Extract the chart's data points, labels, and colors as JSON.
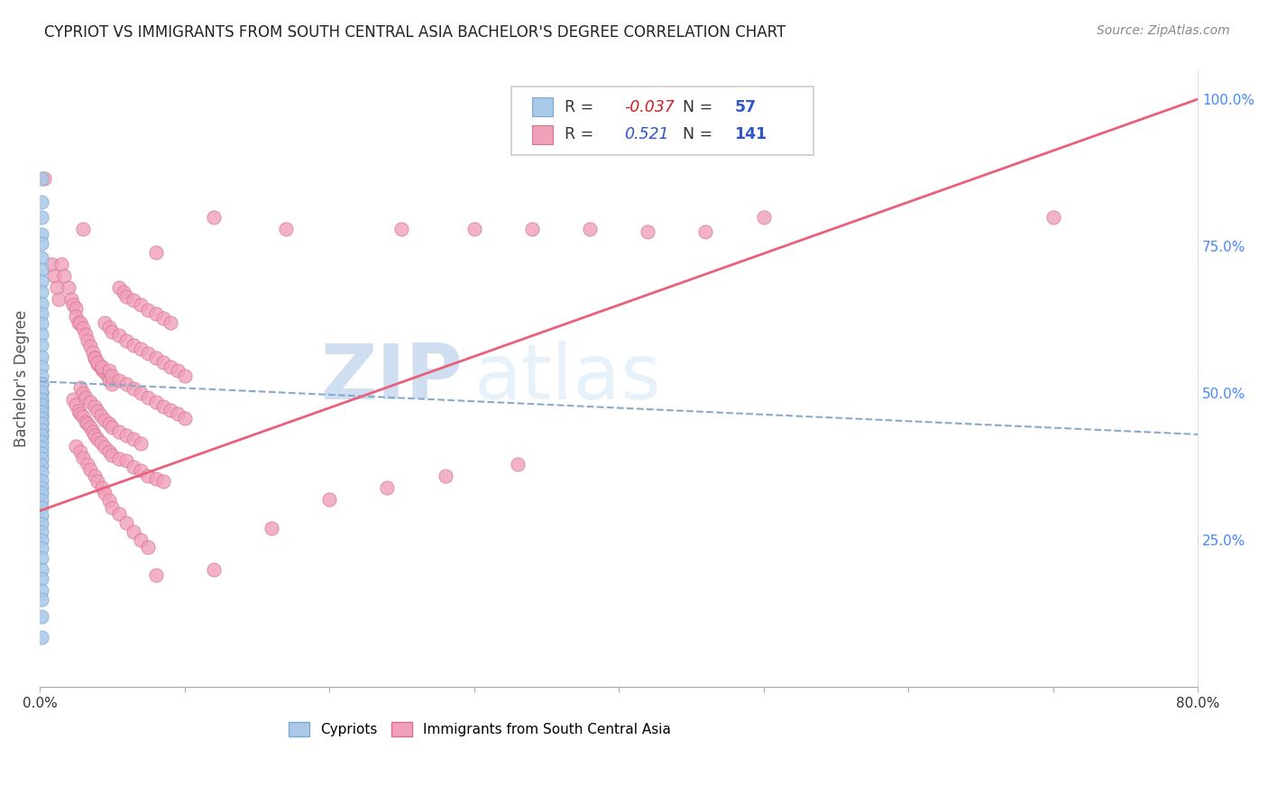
{
  "title": "CYPRIOT VS IMMIGRANTS FROM SOUTH CENTRAL ASIA BACHELOR'S DEGREE CORRELATION CHART",
  "source": "Source: ZipAtlas.com",
  "ylabel": "Bachelor's Degree",
  "xlim": [
    0.0,
    0.8
  ],
  "ylim": [
    0.0,
    1.05
  ],
  "x_tick_labels": [
    "0.0%",
    "",
    "",
    "",
    "",
    "",
    "",
    "",
    "80.0%"
  ],
  "x_tick_vals": [
    0.0,
    0.1,
    0.2,
    0.3,
    0.4,
    0.5,
    0.6,
    0.7,
    0.8
  ],
  "y_tick_labels_right": [
    "100.0%",
    "75.0%",
    "50.0%",
    "25.0%"
  ],
  "y_tick_vals_right": [
    1.0,
    0.75,
    0.5,
    0.25
  ],
  "background_color": "#ffffff",
  "grid_color": "#c8c8c8",
  "cypriot_color": "#aac8e8",
  "cypriot_edge_color": "#7aaad0",
  "immigrant_color": "#f0a0b8",
  "immigrant_edge_color": "#d87090",
  "cypriot_line_color": "#88aacc",
  "immigrant_line_color": "#e8607a",
  "R_cypriot": -0.037,
  "N_cypriot": 57,
  "R_immigrant": 0.521,
  "N_immigrant": 141,
  "watermark_ZIP": "ZIP",
  "watermark_atlas": "atlas",
  "legend_labels": [
    "Cypriots",
    "Immigrants from South Central Asia"
  ],
  "cypriot_points": [
    [
      0.001,
      0.865
    ],
    [
      0.001,
      0.825
    ],
    [
      0.001,
      0.8
    ],
    [
      0.001,
      0.77
    ],
    [
      0.001,
      0.755
    ],
    [
      0.001,
      0.73
    ],
    [
      0.001,
      0.71
    ],
    [
      0.001,
      0.69
    ],
    [
      0.001,
      0.672
    ],
    [
      0.001,
      0.652
    ],
    [
      0.001,
      0.635
    ],
    [
      0.001,
      0.618
    ],
    [
      0.001,
      0.6
    ],
    [
      0.001,
      0.582
    ],
    [
      0.001,
      0.562
    ],
    [
      0.001,
      0.545
    ],
    [
      0.001,
      0.53
    ],
    [
      0.001,
      0.515
    ],
    [
      0.001,
      0.5
    ],
    [
      0.001,
      0.488
    ],
    [
      0.001,
      0.475
    ],
    [
      0.001,
      0.462
    ],
    [
      0.001,
      0.45
    ],
    [
      0.001,
      0.438
    ],
    [
      0.001,
      0.428
    ],
    [
      0.001,
      0.515
    ],
    [
      0.001,
      0.502
    ],
    [
      0.001,
      0.49
    ],
    [
      0.001,
      0.48
    ],
    [
      0.001,
      0.468
    ],
    [
      0.001,
      0.458
    ],
    [
      0.001,
      0.448
    ],
    [
      0.001,
      0.438
    ],
    [
      0.001,
      0.428
    ],
    [
      0.001,
      0.418
    ],
    [
      0.001,
      0.408
    ],
    [
      0.001,
      0.398
    ],
    [
      0.001,
      0.388
    ],
    [
      0.001,
      0.378
    ],
    [
      0.001,
      0.365
    ],
    [
      0.001,
      0.352
    ],
    [
      0.001,
      0.34
    ],
    [
      0.001,
      0.33
    ],
    [
      0.001,
      0.318
    ],
    [
      0.001,
      0.305
    ],
    [
      0.001,
      0.292
    ],
    [
      0.001,
      0.278
    ],
    [
      0.001,
      0.265
    ],
    [
      0.001,
      0.25
    ],
    [
      0.001,
      0.237
    ],
    [
      0.001,
      0.22
    ],
    [
      0.001,
      0.2
    ],
    [
      0.001,
      0.185
    ],
    [
      0.001,
      0.165
    ],
    [
      0.001,
      0.15
    ],
    [
      0.001,
      0.12
    ],
    [
      0.001,
      0.085
    ]
  ],
  "immigrant_points": [
    [
      0.003,
      0.865
    ],
    [
      0.008,
      0.72
    ],
    [
      0.01,
      0.7
    ],
    [
      0.012,
      0.68
    ],
    [
      0.013,
      0.66
    ],
    [
      0.015,
      0.72
    ],
    [
      0.017,
      0.7
    ],
    [
      0.02,
      0.68
    ],
    [
      0.022,
      0.66
    ],
    [
      0.023,
      0.65
    ],
    [
      0.025,
      0.645
    ],
    [
      0.025,
      0.63
    ],
    [
      0.027,
      0.62
    ],
    [
      0.028,
      0.62
    ],
    [
      0.03,
      0.61
    ],
    [
      0.032,
      0.6
    ],
    [
      0.033,
      0.59
    ],
    [
      0.035,
      0.58
    ],
    [
      0.037,
      0.57
    ],
    [
      0.038,
      0.56
    ],
    [
      0.04,
      0.55
    ],
    [
      0.042,
      0.545
    ],
    [
      0.043,
      0.54
    ],
    [
      0.045,
      0.535
    ],
    [
      0.047,
      0.53
    ],
    [
      0.048,
      0.522
    ],
    [
      0.05,
      0.515
    ],
    [
      0.023,
      0.49
    ],
    [
      0.025,
      0.48
    ],
    [
      0.027,
      0.47
    ],
    [
      0.028,
      0.465
    ],
    [
      0.03,
      0.46
    ],
    [
      0.032,
      0.452
    ],
    [
      0.033,
      0.448
    ],
    [
      0.035,
      0.442
    ],
    [
      0.037,
      0.435
    ],
    [
      0.038,
      0.428
    ],
    [
      0.04,
      0.422
    ],
    [
      0.042,
      0.416
    ],
    [
      0.045,
      0.408
    ],
    [
      0.048,
      0.4
    ],
    [
      0.05,
      0.395
    ],
    [
      0.055,
      0.388
    ],
    [
      0.06,
      0.385
    ],
    [
      0.065,
      0.375
    ],
    [
      0.07,
      0.368
    ],
    [
      0.075,
      0.36
    ],
    [
      0.08,
      0.355
    ],
    [
      0.085,
      0.35
    ],
    [
      0.025,
      0.41
    ],
    [
      0.028,
      0.4
    ],
    [
      0.03,
      0.39
    ],
    [
      0.033,
      0.38
    ],
    [
      0.035,
      0.37
    ],
    [
      0.038,
      0.36
    ],
    [
      0.04,
      0.35
    ],
    [
      0.043,
      0.34
    ],
    [
      0.045,
      0.33
    ],
    [
      0.048,
      0.318
    ],
    [
      0.05,
      0.305
    ],
    [
      0.055,
      0.295
    ],
    [
      0.06,
      0.28
    ],
    [
      0.065,
      0.265
    ],
    [
      0.07,
      0.25
    ],
    [
      0.075,
      0.238
    ],
    [
      0.028,
      0.51
    ],
    [
      0.03,
      0.5
    ],
    [
      0.032,
      0.492
    ],
    [
      0.035,
      0.485
    ],
    [
      0.038,
      0.478
    ],
    [
      0.04,
      0.47
    ],
    [
      0.042,
      0.462
    ],
    [
      0.045,
      0.455
    ],
    [
      0.048,
      0.448
    ],
    [
      0.05,
      0.442
    ],
    [
      0.055,
      0.435
    ],
    [
      0.06,
      0.428
    ],
    [
      0.065,
      0.422
    ],
    [
      0.07,
      0.415
    ],
    [
      0.038,
      0.56
    ],
    [
      0.04,
      0.552
    ],
    [
      0.043,
      0.545
    ],
    [
      0.048,
      0.538
    ],
    [
      0.05,
      0.53
    ],
    [
      0.055,
      0.522
    ],
    [
      0.06,
      0.515
    ],
    [
      0.065,
      0.508
    ],
    [
      0.07,
      0.5
    ],
    [
      0.075,
      0.492
    ],
    [
      0.08,
      0.485
    ],
    [
      0.085,
      0.478
    ],
    [
      0.09,
      0.472
    ],
    [
      0.095,
      0.465
    ],
    [
      0.1,
      0.458
    ],
    [
      0.045,
      0.62
    ],
    [
      0.048,
      0.612
    ],
    [
      0.05,
      0.605
    ],
    [
      0.055,
      0.598
    ],
    [
      0.06,
      0.59
    ],
    [
      0.065,
      0.582
    ],
    [
      0.07,
      0.575
    ],
    [
      0.075,
      0.568
    ],
    [
      0.08,
      0.56
    ],
    [
      0.085,
      0.552
    ],
    [
      0.09,
      0.545
    ],
    [
      0.095,
      0.538
    ],
    [
      0.1,
      0.53
    ],
    [
      0.055,
      0.68
    ],
    [
      0.058,
      0.672
    ],
    [
      0.06,
      0.665
    ],
    [
      0.065,
      0.658
    ],
    [
      0.07,
      0.65
    ],
    [
      0.075,
      0.642
    ],
    [
      0.08,
      0.635
    ],
    [
      0.085,
      0.628
    ],
    [
      0.09,
      0.62
    ],
    [
      0.03,
      0.78
    ],
    [
      0.08,
      0.74
    ],
    [
      0.12,
      0.8
    ],
    [
      0.17,
      0.78
    ],
    [
      0.25,
      0.78
    ],
    [
      0.3,
      0.78
    ],
    [
      0.34,
      0.78
    ],
    [
      0.38,
      0.78
    ],
    [
      0.42,
      0.775
    ],
    [
      0.46,
      0.775
    ],
    [
      0.5,
      0.8
    ],
    [
      0.7,
      0.8
    ],
    [
      0.08,
      0.19
    ],
    [
      0.12,
      0.2
    ],
    [
      0.16,
      0.27
    ],
    [
      0.2,
      0.32
    ],
    [
      0.24,
      0.34
    ],
    [
      0.28,
      0.36
    ],
    [
      0.33,
      0.38
    ]
  ],
  "cyp_line": [
    0.0,
    0.8,
    0.52,
    0.43
  ],
  "imm_line": [
    0.0,
    0.8,
    0.3,
    1.0
  ]
}
